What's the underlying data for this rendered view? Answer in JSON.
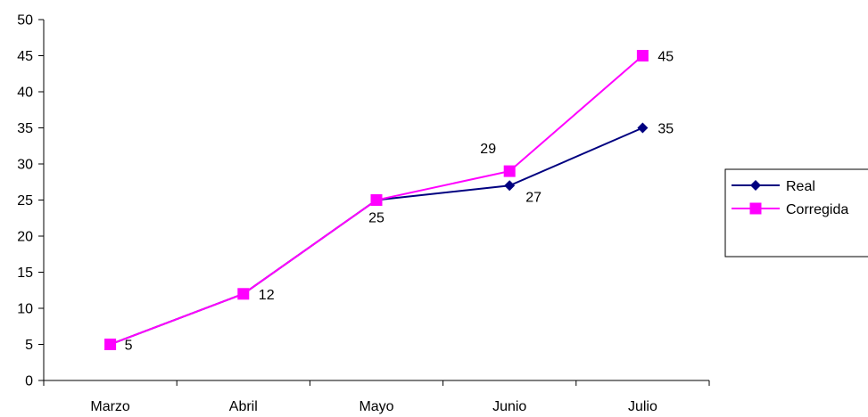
{
  "chart_data": {
    "type": "line",
    "categories": [
      "Marzo",
      "Abril",
      "Mayo",
      "Junio",
      "Julio"
    ],
    "y_ticks": [
      "0",
      "5",
      "10",
      "15",
      "20",
      "25",
      "30",
      "35",
      "40",
      "45",
      "50"
    ],
    "ylim": [
      0,
      50
    ],
    "grid": false,
    "legend_position": "right",
    "series": [
      {
        "name": "Real",
        "values": [
          5,
          12,
          25,
          27,
          35
        ],
        "color": "#000080",
        "marker": "diamond",
        "labels": [
          "",
          "",
          "",
          "27",
          "35"
        ]
      },
      {
        "name": "Corregida",
        "values": [
          5,
          12,
          25,
          29,
          45
        ],
        "color": "#ff00ff",
        "marker": "square",
        "labels": [
          "5",
          "12",
          "25",
          "29",
          "45"
        ]
      }
    ]
  }
}
